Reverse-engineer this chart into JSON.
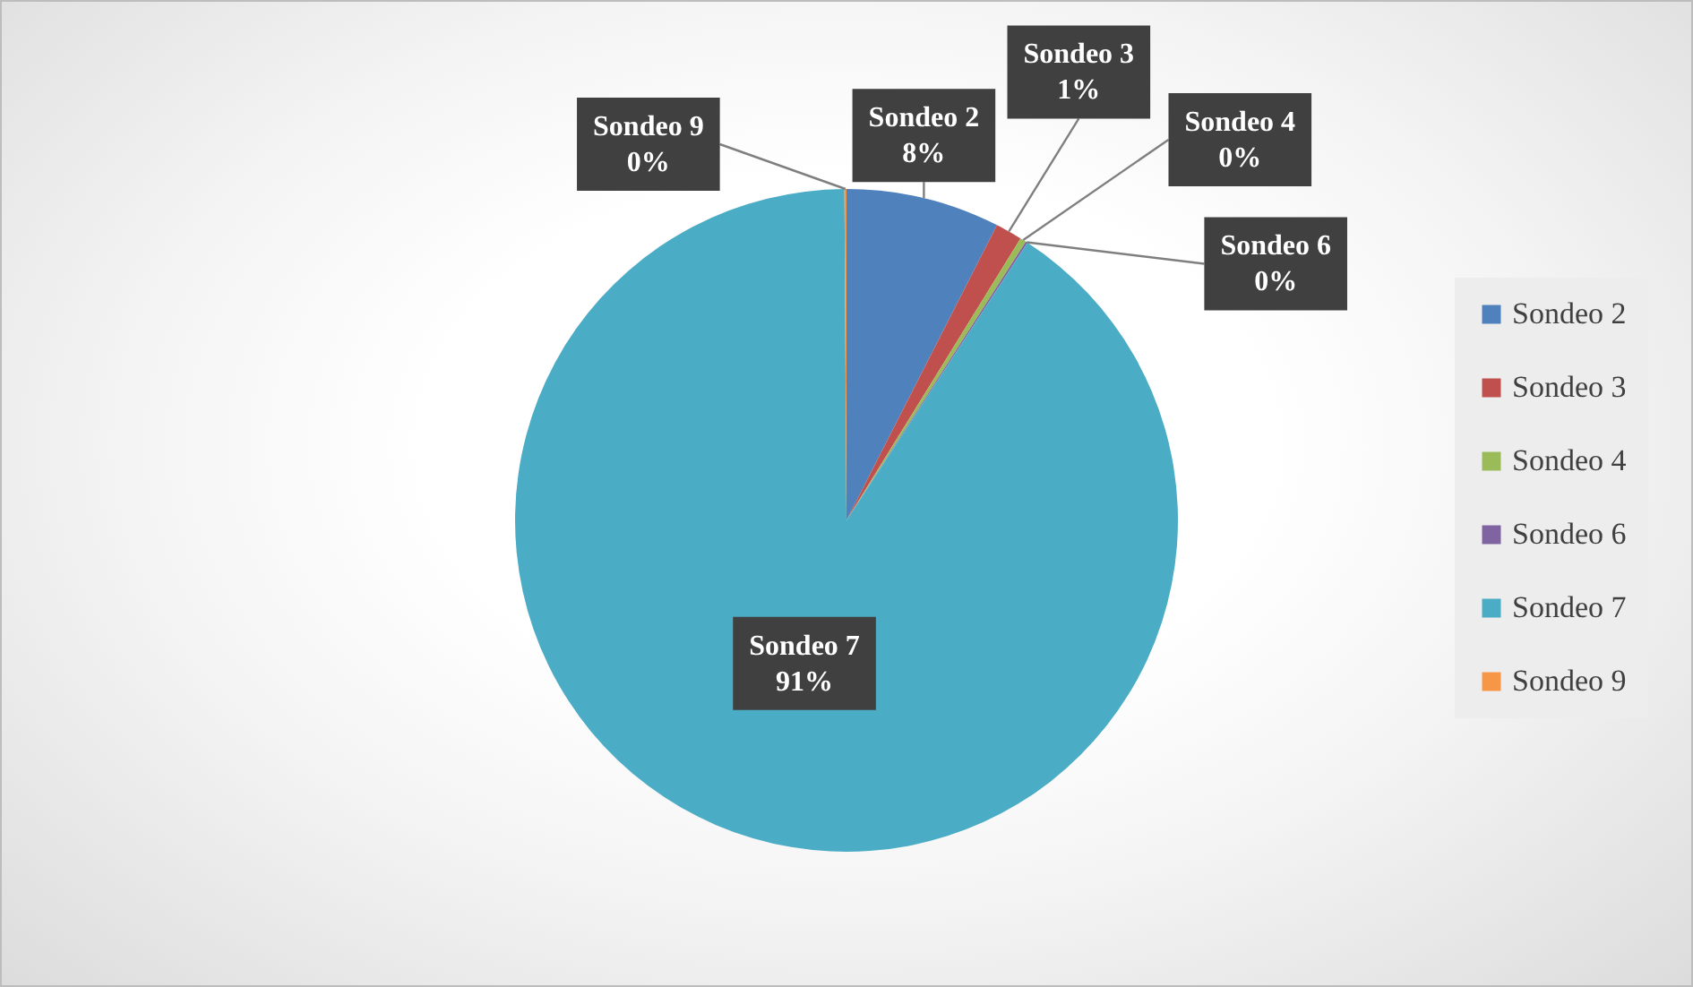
{
  "chart_data": {
    "type": "pie",
    "categories": [
      "Sondeo 2",
      "Sondeo 3",
      "Sondeo 4",
      "Sondeo 6",
      "Sondeo 7",
      "Sondeo 9"
    ],
    "values": [
      7.5,
      1.3,
      0.3,
      0.1,
      90.7,
      0.1
    ],
    "value_labels": [
      "8%",
      "1%",
      "0%",
      "0%",
      "91%",
      "0%"
    ],
    "colors": [
      "#4f81bd",
      "#c0504d",
      "#9bbb59",
      "#8064a2",
      "#4bacc6",
      "#f79646"
    ],
    "legend": "right"
  }
}
